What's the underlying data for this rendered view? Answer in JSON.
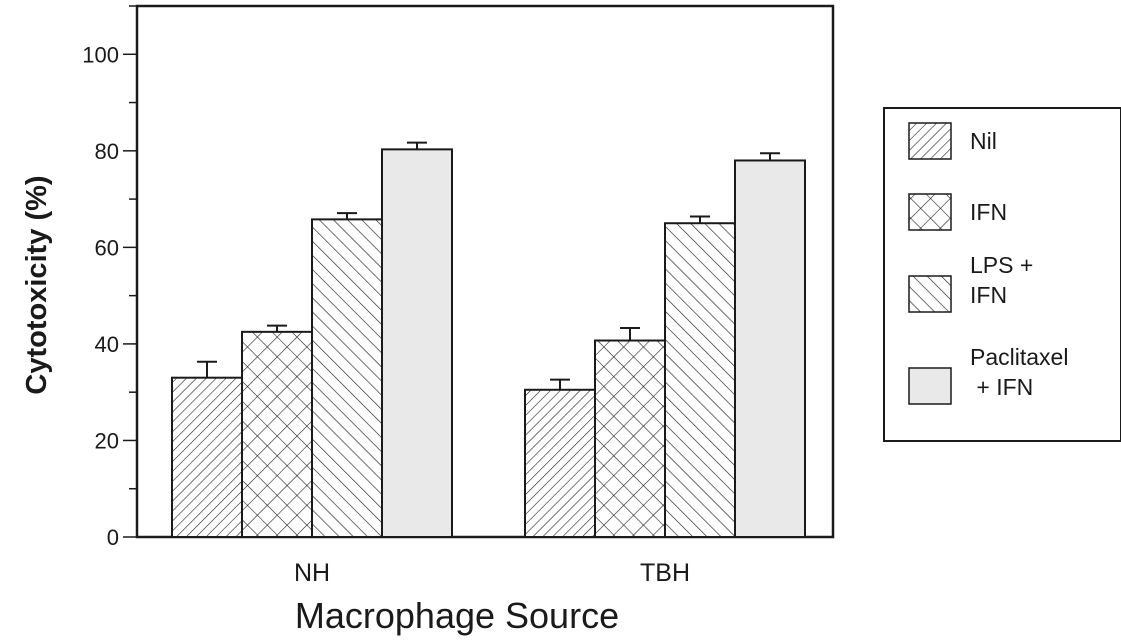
{
  "chart_data": {
    "type": "bar",
    "title": "",
    "xlabel": "Macrophage Source",
    "ylabel": "Cytotoxicity (%)",
    "ylim": [
      0,
      110
    ],
    "yticks": [
      0,
      20,
      40,
      60,
      80,
      100
    ],
    "categories": [
      "NH",
      "TBH"
    ],
    "grid": false,
    "legend_position": "right",
    "series": [
      {
        "name": "Nil",
        "pattern": "diagonal-forward",
        "values": [
          33,
          30.5
        ],
        "errors": [
          3.3,
          2.1
        ]
      },
      {
        "name": "IFN",
        "pattern": "crosshatch",
        "values": [
          42.5,
          40.7
        ],
        "errors": [
          1.3,
          2.6
        ]
      },
      {
        "name": "LPS + IFN",
        "pattern": "diagonal-back",
        "values": [
          65.8,
          65
        ],
        "errors": [
          1.3,
          1.4
        ]
      },
      {
        "name": "Paclitaxel + IFN",
        "pattern": "solid",
        "color": "#e9e9ea",
        "values": [
          80.3,
          78
        ],
        "errors": [
          1.4,
          1.5
        ]
      }
    ],
    "legend_lines": [
      [
        "Nil"
      ],
      [
        "IFN"
      ],
      [
        "LPS +",
        "IFN"
      ],
      [
        "Paclitaxel",
        " + IFN"
      ]
    ]
  }
}
